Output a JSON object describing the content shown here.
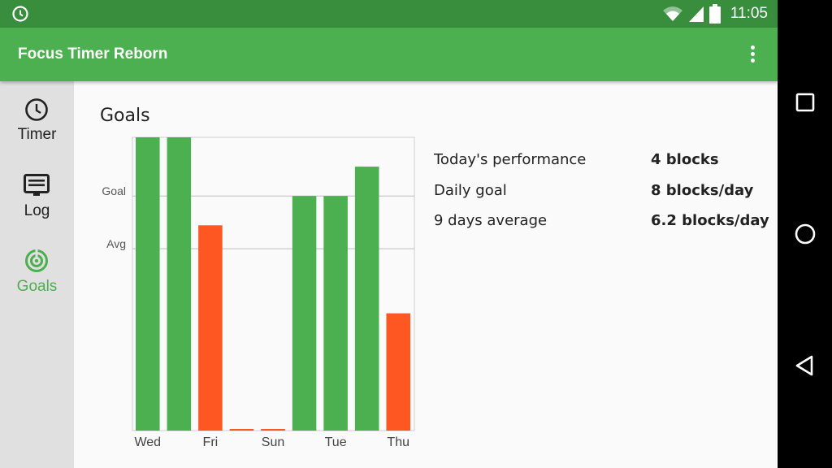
{
  "status_bar": {
    "time": "11:05",
    "icons": [
      "clock-icon",
      "wifi-icon",
      "signal-icon",
      "battery-icon"
    ]
  },
  "app_bar": {
    "title": "Focus Timer Reborn",
    "menu_icon": "more-vert-icon"
  },
  "sidebar": {
    "items": [
      {
        "label": "Timer",
        "icon": "clock-icon",
        "active": false
      },
      {
        "label": "Log",
        "icon": "log-icon",
        "active": false
      },
      {
        "label": "Goals",
        "icon": "target-icon",
        "active": true
      }
    ]
  },
  "main": {
    "title": "Goals",
    "stats": [
      {
        "label": "Today's performance",
        "value": "4 blocks"
      },
      {
        "label": "Daily goal",
        "value": "8 blocks/day"
      },
      {
        "label": "9 days average",
        "value": "6.2 blocks/day"
      }
    ]
  },
  "chart_data": {
    "type": "bar",
    "categories": [
      "Wed",
      "",
      "Fri",
      "",
      "Sun",
      "",
      "Tue",
      "",
      "Thu"
    ],
    "values": [
      10,
      10,
      7,
      0,
      0,
      8,
      8,
      9,
      4
    ],
    "colors": [
      "#4caf50",
      "#4caf50",
      "#ff5722",
      "#ff5722",
      "#ff5722",
      "#4caf50",
      "#4caf50",
      "#4caf50",
      "#ff5722"
    ],
    "ylim": [
      0,
      10
    ],
    "reference_lines": [
      {
        "label": "Goal",
        "value": 8
      },
      {
        "label": "Avg",
        "value": 6.2
      }
    ]
  },
  "colors": {
    "status_bar": "#388e3c",
    "app_bar": "#4caf50",
    "above_goal": "#4caf50",
    "below_goal": "#ff5722"
  },
  "android_nav": [
    "recents-icon",
    "home-icon",
    "back-icon"
  ]
}
